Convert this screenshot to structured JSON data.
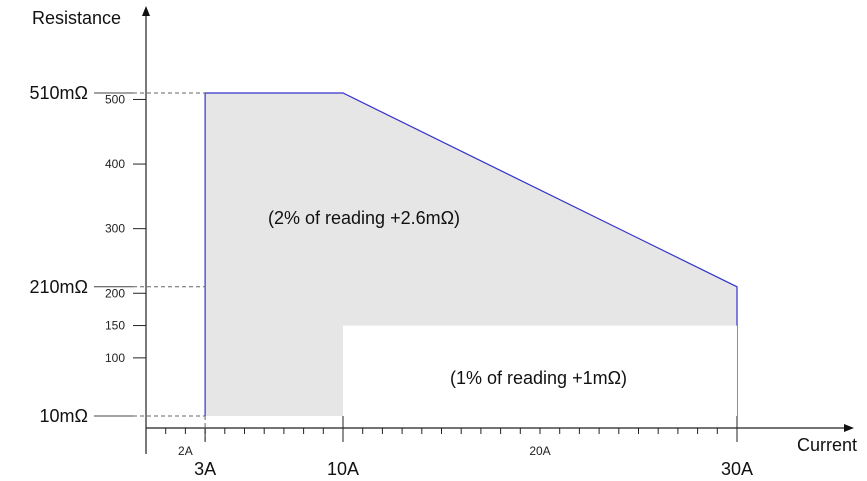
{
  "chart_data": {
    "type": "area",
    "xlabel": "Current",
    "ylabel": "Resistance",
    "x_unit": "A",
    "y_unit": "mΩ",
    "xlim": [
      0,
      30
    ],
    "ylim": [
      10,
      540
    ],
    "y_ticks": [
      100,
      150,
      200,
      300,
      400,
      500
    ],
    "y_tick_labels": [
      "100",
      "150",
      "200",
      "300",
      "400",
      "500"
    ],
    "y_markers": [
      {
        "value": 510,
        "label": "510mΩ"
      },
      {
        "value": 210,
        "label": "210mΩ"
      },
      {
        "value": 10,
        "label": "10mΩ"
      }
    ],
    "x_minor_ticks": [
      1,
      2,
      3,
      4,
      5,
      6,
      7,
      8,
      9,
      10,
      11,
      12,
      13,
      14,
      15,
      16,
      17,
      18,
      19,
      20,
      21,
      22,
      23,
      24,
      25,
      26,
      27,
      28,
      29,
      30
    ],
    "x_small_labels": [
      {
        "value": 2,
        "label": "2A"
      },
      {
        "value": 20,
        "label": "20A"
      }
    ],
    "x_major_labels": [
      {
        "value": 3,
        "label": "3A"
      },
      {
        "value": 10,
        "label": "10A"
      },
      {
        "value": 30,
        "label": "30A"
      }
    ],
    "regions": [
      {
        "name": "(2% of reading +2.6mΩ)",
        "fill": "#e6e6e6",
        "boundary_color": "#3333cc",
        "points": [
          [
            3,
            10
          ],
          [
            3,
            510
          ],
          [
            10,
            510
          ],
          [
            30,
            210
          ],
          [
            30,
            10
          ]
        ]
      },
      {
        "name": "(1% of reading +1mΩ)",
        "fill": "#ffffff",
        "points": [
          [
            10,
            10
          ],
          [
            10,
            150
          ],
          [
            30,
            150
          ],
          [
            30,
            10
          ]
        ]
      }
    ]
  }
}
